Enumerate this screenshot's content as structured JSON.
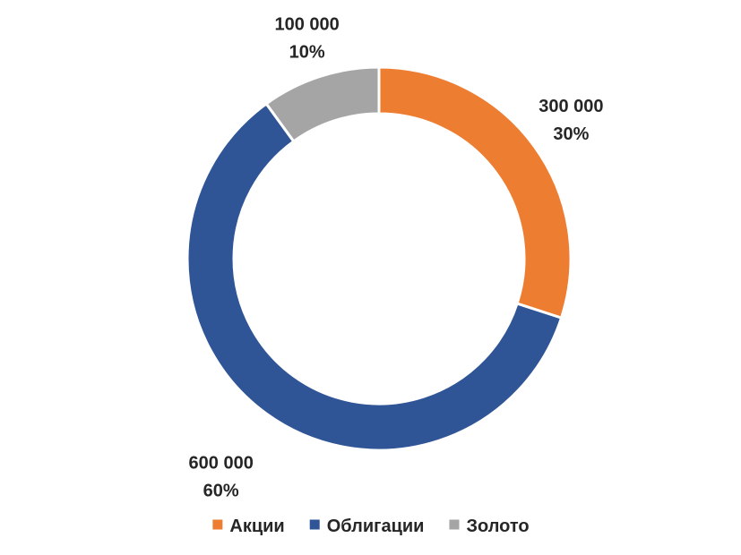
{
  "chart_data": {
    "type": "pie",
    "variant": "donut",
    "categories": [
      "Акции",
      "Облигации",
      "Золото"
    ],
    "values": [
      300000,
      600000,
      100000
    ],
    "value_labels": [
      "300 000",
      "600 000",
      "100 000"
    ],
    "percent_labels": [
      "30%",
      "60%",
      "10%"
    ],
    "colors": [
      "#ED7D31",
      "#2F5597",
      "#A5A5A5"
    ],
    "title": "",
    "legend_position": "bottom",
    "start_angle_deg": 0,
    "direction": "clockwise"
  }
}
